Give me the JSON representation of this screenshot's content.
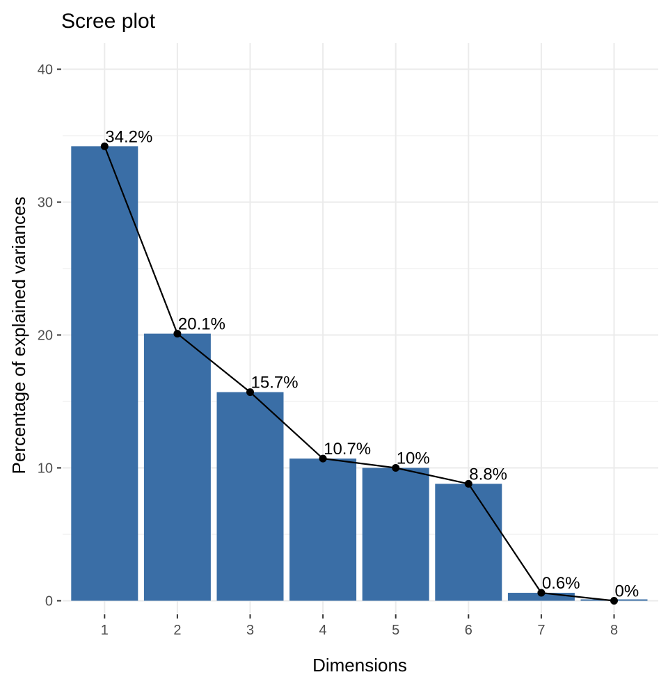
{
  "chart_data": {
    "type": "bar",
    "title": "Scree plot",
    "xlabel": "Dimensions",
    "ylabel": "Percentage of explained variances",
    "categories": [
      "1",
      "2",
      "3",
      "4",
      "5",
      "6",
      "7",
      "8"
    ],
    "values": [
      34.2,
      20.1,
      15.7,
      10.7,
      10,
      8.8,
      0.6,
      0
    ],
    "data_labels": [
      "34.2%",
      "20.1%",
      "15.7%",
      "10.7%",
      "10%",
      "8.8%",
      "0.6%",
      "0%"
    ],
    "ylim": [
      0,
      40
    ],
    "yticks": [
      0,
      10,
      20,
      30,
      40
    ],
    "grid": true,
    "overlay": "line with points connecting bar tops",
    "colors": {
      "bar": "#3A6EA6",
      "line": "#000000",
      "grid": "#EBEBEB",
      "tick": "#333333"
    }
  }
}
